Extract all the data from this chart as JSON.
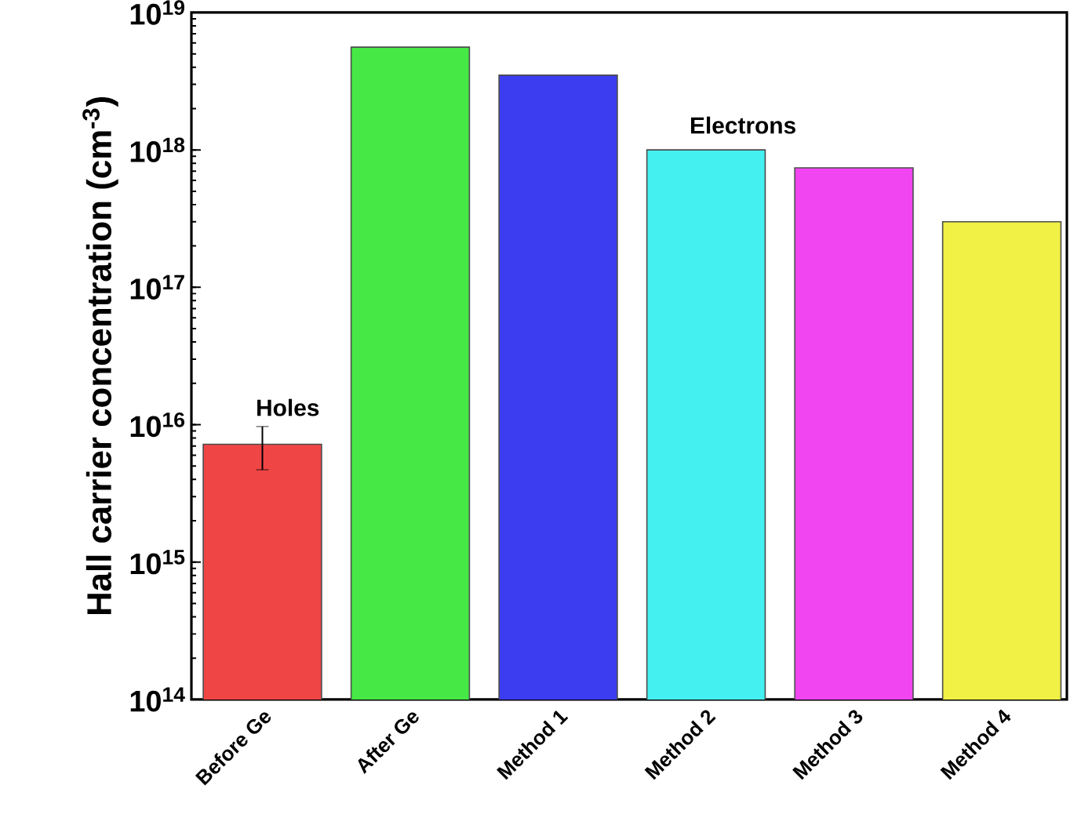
{
  "chart_data": {
    "type": "bar",
    "ylabel": "Hall carrier concentration (cm$^{-3}$)",
    "categories": [
      "Before Ge",
      "After Ge",
      "Method 1",
      "Method 2",
      "Method 3",
      "Method 4"
    ],
    "values": [
      7200000000000000.0,
      5.6e+18,
      3.5e+18,
      1e+18,
      7.4e+17,
      3e+17
    ],
    "errors": [
      2500000000000000.0,
      null,
      null,
      null,
      null,
      null
    ],
    "colors": [
      "#f04545",
      "#45e845",
      "#3c3cf0",
      "#45f0f0",
      "#f045f0",
      "#f0f045"
    ],
    "log": true,
    "ylim": [
      100000000000000.0,
      1e+19
    ],
    "yticks": [
      {
        "value": 100000000000000.0,
        "label": "10$^{14}$"
      },
      {
        "value": 1000000000000000.0,
        "label": "10$^{15}$"
      },
      {
        "value": 1e+16,
        "label": "10$^{16}$"
      },
      {
        "value": 1e+17,
        "label": "10$^{17}$"
      },
      {
        "value": 1e+18,
        "label": "10$^{18}$"
      },
      {
        "value": 1e+19,
        "label": "10$^{19}$"
      }
    ],
    "annotations": [
      "Holes",
      "Electrons"
    ]
  }
}
